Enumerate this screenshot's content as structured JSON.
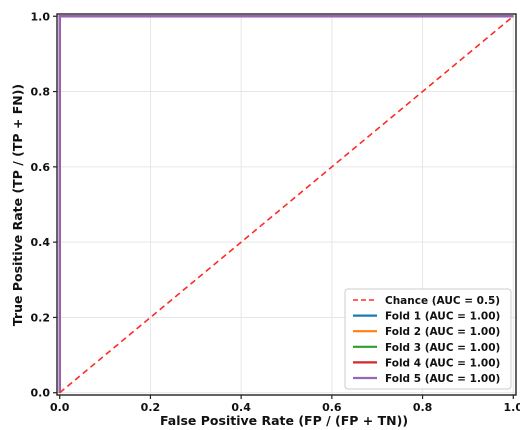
{
  "chart_data": {
    "type": "line",
    "title": "",
    "xlabel": "False Positive Rate  (FP / (FP + TN))",
    "ylabel": "True Positive Rate  (TP / (TP + FN))",
    "xlim": [
      0,
      1
    ],
    "ylim": [
      0,
      1
    ],
    "xticks": [
      "0.0",
      "0.2",
      "0.4",
      "0.6",
      "0.8",
      "1.0"
    ],
    "yticks": [
      "0.0",
      "0.2",
      "0.4",
      "0.6",
      "0.8",
      "1.0"
    ],
    "grid": true,
    "legend_position": "bottom-right",
    "series": [
      {
        "name": "Chance (AUC = 0.5)",
        "color": "#ff2a2a",
        "dashed": true,
        "x": [
          0,
          1
        ],
        "y": [
          0,
          1
        ]
      },
      {
        "name": "Fold 1 (AUC = 1.00)",
        "color": "#1f77b4",
        "x": [
          0,
          0,
          1
        ],
        "y": [
          0,
          1,
          1
        ]
      },
      {
        "name": "Fold 2 (AUC = 1.00)",
        "color": "#ff7f0e",
        "x": [
          0,
          0,
          1
        ],
        "y": [
          0,
          1,
          1
        ]
      },
      {
        "name": "Fold 3 (AUC = 1.00)",
        "color": "#2ca02c",
        "x": [
          0,
          0,
          1
        ],
        "y": [
          0,
          1,
          1
        ]
      },
      {
        "name": "Fold 4 (AUC = 1.00)",
        "color": "#d62728",
        "x": [
          0,
          0,
          1
        ],
        "y": [
          0,
          1,
          1
        ]
      },
      {
        "name": "Fold 5 (AUC = 1.00)",
        "color": "#9467bd",
        "x": [
          0,
          0,
          1
        ],
        "y": [
          0,
          1,
          1
        ]
      }
    ]
  }
}
